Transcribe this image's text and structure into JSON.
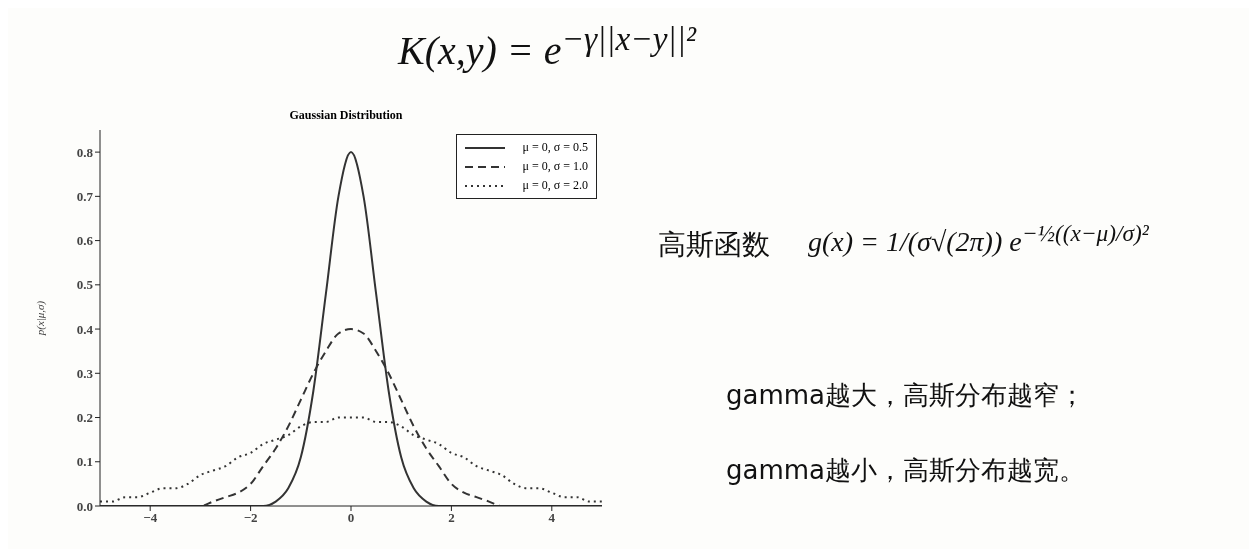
{
  "chart_data": {
    "type": "line",
    "title": "Gaussian Distribution",
    "ylabel": "p(x|μ,σ)",
    "x": [
      -5,
      -4.75,
      -4.5,
      -4.25,
      -4,
      -3.75,
      -3.5,
      -3.25,
      -3,
      -2.75,
      -2.5,
      -2.25,
      -2,
      -1.75,
      -1.5,
      -1.25,
      -1,
      -0.75,
      -0.5,
      -0.25,
      0,
      0.25,
      0.5,
      0.75,
      1,
      1.25,
      1.5,
      1.75,
      2,
      2.25,
      2.5,
      2.75,
      3,
      3.25,
      3.5,
      3.75,
      4,
      4.25,
      4.5,
      4.75,
      5
    ],
    "series": [
      {
        "name": "μ = 0, σ = 0.5",
        "color": "#333333",
        "line_style": "solid",
        "values": [
          0,
          0,
          0,
          0,
          0,
          0,
          0,
          0,
          0,
          0,
          0,
          0,
          0,
          0,
          0.01,
          0.04,
          0.11,
          0.26,
          0.48,
          0.7,
          0.8,
          0.7,
          0.48,
          0.26,
          0.11,
          0.04,
          0.01,
          0,
          0,
          0,
          0,
          0,
          0,
          0,
          0,
          0,
          0,
          0,
          0,
          0,
          0
        ]
      },
      {
        "name": "μ = 0, σ = 1.0",
        "color": "#333333",
        "line_style": "dashed",
        "values": [
          0,
          0,
          0,
          0,
          0,
          0,
          0,
          0,
          0,
          0.01,
          0.02,
          0.03,
          0.05,
          0.09,
          0.13,
          0.18,
          0.24,
          0.3,
          0.35,
          0.39,
          0.4,
          0.39,
          0.35,
          0.3,
          0.24,
          0.18,
          0.13,
          0.09,
          0.05,
          0.03,
          0.02,
          0.01,
          0,
          0,
          0,
          0,
          0,
          0,
          0,
          0,
          0
        ]
      },
      {
        "name": "μ = 0, σ = 2.0",
        "color": "#333333",
        "line_style": "dotted",
        "values": [
          0.01,
          0.01,
          0.02,
          0.02,
          0.03,
          0.04,
          0.04,
          0.05,
          0.07,
          0.08,
          0.09,
          0.11,
          0.12,
          0.14,
          0.15,
          0.16,
          0.18,
          0.19,
          0.19,
          0.2,
          0.2,
          0.2,
          0.19,
          0.19,
          0.18,
          0.16,
          0.15,
          0.14,
          0.12,
          0.11,
          0.09,
          0.08,
          0.07,
          0.05,
          0.04,
          0.04,
          0.03,
          0.02,
          0.02,
          0.01,
          0.01
        ]
      }
    ],
    "xlim": [
      -5,
      5
    ],
    "xticks": [
      {
        "value": -4,
        "label": "−4"
      },
      {
        "value": -2,
        "label": "−2"
      },
      0,
      2,
      4
    ],
    "ylim": [
      0,
      0.85
    ],
    "yticks": [
      {
        "value": 0,
        "label": "0.0"
      },
      0.1,
      0.2,
      0.3,
      0.4,
      0.5,
      0.6,
      0.7,
      0.8
    ],
    "grid": false,
    "legend": "top right",
    "marker": "none",
    "annotations": [
      "K(x,y) = e$^{−γ||x−y||²}$",
      "高斯函数",
      "g(x) = 1/(σ√(2π)) e$^{−½((x−μ)/σ)²}$",
      "gamma越大，高斯分布越窄；",
      "gamma越小，高斯分布越宽。"
    ]
  }
}
